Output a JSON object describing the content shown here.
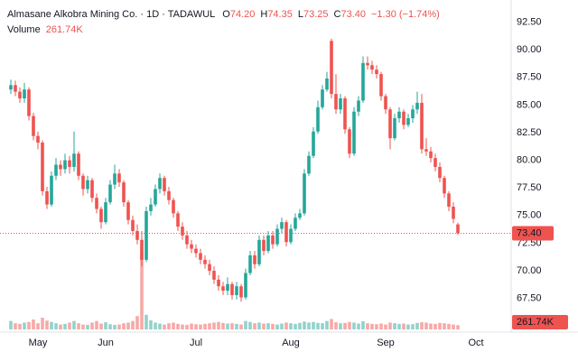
{
  "chart_data": {
    "type": "candlestick",
    "title": "Almasane Alkobra Mining Co. · 1D · TADAWUL",
    "ohlc_legend": [
      {
        "key": "O",
        "value": "74.20"
      },
      {
        "key": "H",
        "value": "74.35"
      },
      {
        "key": "L",
        "value": "73.25"
      },
      {
        "key": "C",
        "value": "73.40"
      }
    ],
    "change_label": "−1.30 (−1.74%)",
    "volume_title": "Volume",
    "volume_label": "261.74K",
    "up_color": "#26a69a",
    "down_color": "#ef5350",
    "open": [
      86.4,
      86.8,
      86.2,
      85.6,
      86.4,
      84.0,
      82.2,
      81.6,
      77.2,
      76.0,
      78.6,
      79.6,
      79.2,
      80.0,
      79.4,
      80.6,
      78.6,
      77.4,
      78.2,
      76.6,
      75.6,
      74.4,
      76.2,
      77.8,
      78.8,
      78.0,
      76.2,
      74.6,
      73.6,
      72.8,
      71.0,
      75.4,
      76.0,
      77.4,
      78.4,
      77.2,
      76.4,
      75.2,
      74.0,
      73.2,
      72.4,
      72.0,
      71.6,
      71.0,
      70.6,
      70.0,
      69.2,
      68.6,
      68.2,
      68.8,
      67.8,
      68.6,
      67.6,
      69.8,
      71.4,
      70.6,
      72.8,
      71.8,
      73.2,
      72.4,
      73.8,
      74.4,
      72.6,
      73.8,
      74.8,
      75.2,
      78.8,
      80.4,
      82.6,
      84.8,
      86.4,
      90.8,
      86.0,
      84.6,
      85.6,
      82.8,
      80.6,
      84.4,
      85.4,
      88.8,
      88.6,
      88.2,
      87.8,
      85.8,
      84.6,
      82.0,
      83.8,
      84.4,
      83.2,
      83.8,
      84.6,
      85.2,
      81.0,
      80.8,
      80.2,
      79.4,
      78.4,
      77.0,
      75.8,
      74.2
    ],
    "high": [
      87.3,
      87.2,
      86.6,
      87.0,
      86.6,
      84.3,
      82.6,
      81.8,
      77.6,
      79.0,
      80.2,
      80.0,
      80.6,
      80.4,
      82.6,
      80.8,
      78.8,
      78.6,
      78.4,
      77.0,
      75.8,
      76.6,
      78.2,
      79.6,
      79.2,
      78.2,
      76.4,
      75.0,
      74.2,
      73.6,
      75.8,
      76.6,
      77.8,
      78.8,
      78.6,
      77.6,
      76.6,
      75.4,
      74.4,
      73.6,
      72.8,
      72.4,
      72.0,
      71.4,
      71.0,
      70.4,
      69.6,
      69.0,
      69.4,
      69.0,
      69.0,
      68.8,
      70.2,
      71.8,
      71.8,
      73.2,
      73.2,
      73.6,
      73.6,
      74.2,
      74.8,
      74.6,
      74.2,
      75.2,
      75.6,
      79.2,
      80.8,
      83.0,
      85.4,
      86.8,
      88.0,
      91.0,
      87.8,
      86.0,
      85.8,
      83.0,
      84.8,
      85.8,
      89.4,
      89.4,
      89.0,
      88.6,
      88.0,
      86.0,
      84.8,
      84.2,
      84.8,
      84.6,
      84.2,
      85.0,
      86.2,
      86.0,
      82.0,
      81.2,
      80.6,
      79.8,
      78.6,
      77.2,
      76.2,
      74.35
    ],
    "low": [
      86.0,
      85.8,
      85.2,
      85.2,
      83.6,
      81.8,
      81.0,
      76.8,
      75.6,
      75.8,
      78.2,
      78.6,
      78.8,
      78.8,
      79.0,
      78.2,
      76.8,
      77.0,
      76.2,
      75.2,
      73.8,
      74.2,
      76.0,
      77.4,
      77.6,
      75.8,
      74.2,
      73.2,
      72.4,
      70.4,
      70.8,
      75.0,
      75.8,
      77.0,
      76.8,
      76.0,
      74.8,
      73.6,
      72.8,
      72.0,
      71.6,
      71.2,
      70.6,
      70.2,
      69.6,
      68.8,
      68.2,
      67.8,
      67.8,
      67.4,
      67.4,
      67.2,
      67.4,
      69.6,
      70.2,
      70.4,
      71.4,
      71.6,
      72.0,
      72.2,
      73.4,
      72.2,
      72.4,
      73.6,
      74.6,
      75.0,
      78.6,
      80.2,
      82.4,
      84.6,
      86.2,
      85.6,
      84.2,
      84.2,
      82.4,
      80.2,
      80.4,
      84.0,
      85.2,
      88.2,
      87.8,
      87.4,
      85.4,
      84.2,
      81.0,
      81.8,
      83.4,
      82.8,
      83.0,
      83.4,
      84.2,
      80.6,
      80.4,
      79.8,
      79.0,
      78.0,
      76.6,
      75.4,
      74.3,
      73.25
    ],
    "close": [
      86.8,
      86.2,
      85.6,
      86.4,
      84.0,
      82.2,
      81.6,
      77.2,
      76.0,
      78.6,
      79.6,
      79.2,
      80.0,
      79.4,
      80.6,
      78.6,
      77.4,
      78.2,
      76.6,
      75.6,
      74.4,
      76.2,
      77.8,
      78.8,
      78.0,
      76.2,
      74.6,
      73.6,
      72.8,
      71.0,
      75.4,
      76.0,
      77.4,
      78.4,
      77.2,
      76.4,
      75.2,
      74.0,
      73.2,
      72.4,
      72.0,
      71.6,
      71.0,
      70.6,
      70.0,
      69.2,
      68.6,
      68.2,
      68.8,
      67.8,
      68.6,
      67.6,
      69.8,
      71.4,
      70.6,
      72.8,
      71.8,
      73.2,
      72.4,
      73.8,
      74.4,
      72.6,
      73.8,
      74.8,
      75.2,
      78.8,
      80.4,
      82.6,
      84.8,
      86.4,
      87.4,
      86.0,
      84.6,
      85.6,
      82.8,
      80.6,
      84.4,
      85.4,
      88.8,
      88.6,
      88.2,
      87.8,
      85.8,
      84.6,
      82.0,
      83.8,
      84.4,
      83.2,
      83.8,
      84.6,
      85.2,
      81.0,
      80.8,
      80.2,
      79.4,
      78.4,
      77.0,
      75.8,
      74.7,
      73.4
    ],
    "volume": [
      520000,
      380000,
      340000,
      420000,
      460000,
      610000,
      380000,
      720000,
      540000,
      460000,
      380000,
      300000,
      340000,
      420000,
      520000,
      380000,
      300000,
      280000,
      420000,
      520000,
      360000,
      440000,
      320000,
      280000,
      300000,
      380000,
      420000,
      520000,
      820000,
      4800000,
      900000,
      560000,
      420000,
      360000,
      300000,
      380000,
      420000,
      340000,
      300000,
      280000,
      360000,
      320000,
      300000,
      340000,
      380000,
      420000,
      460000,
      400000,
      360000,
      380000,
      340000,
      300000,
      520000,
      460000,
      380000,
      420000,
      360000,
      380000,
      340000,
      300000,
      360000,
      420000,
      380000,
      340000,
      400000,
      480000,
      420000,
      460000,
      400000,
      380000,
      520000,
      640000,
      440000,
      380000,
      400000,
      460000,
      420000,
      360000,
      500000,
      380000,
      340000,
      320000,
      360000,
      300000,
      420000,
      380000,
      340000,
      360000,
      300000,
      320000,
      400000,
      440000,
      420000,
      360000,
      340000,
      400000,
      380000,
      340000,
      300000,
      261740
    ],
    "volume_lim": [
      0,
      5000000
    ],
    "xlim": [
      -2.4,
      110.6
    ],
    "xticks": [
      {
        "value": 6,
        "label": "May"
      },
      {
        "value": 21,
        "label": "Jun"
      },
      {
        "value": 41,
        "label": "Jul"
      },
      {
        "value": 62,
        "label": "Aug"
      },
      {
        "value": 83,
        "label": "Sep"
      },
      {
        "value": 103,
        "label": "Oct"
      }
    ],
    "ylim": [
      64.7,
      94.5
    ],
    "yticks": [
      {
        "value": 67.5,
        "label": "67.50"
      },
      {
        "value": 70,
        "label": "70.00"
      },
      {
        "value": 72.5,
        "label": "72.50"
      },
      {
        "value": 75,
        "label": "75.00"
      },
      {
        "value": 77.5,
        "label": "77.50"
      },
      {
        "value": 80,
        "label": "80.00"
      },
      {
        "value": 82.5,
        "label": "82.50"
      },
      {
        "value": 85,
        "label": "85.00"
      },
      {
        "value": 87.5,
        "label": "87.50"
      },
      {
        "value": 90,
        "label": "90.00"
      },
      {
        "value": 92.5,
        "label": "92.50"
      }
    ],
    "last_price": 73.4,
    "last_price_label": "73.40",
    "grid": false
  }
}
